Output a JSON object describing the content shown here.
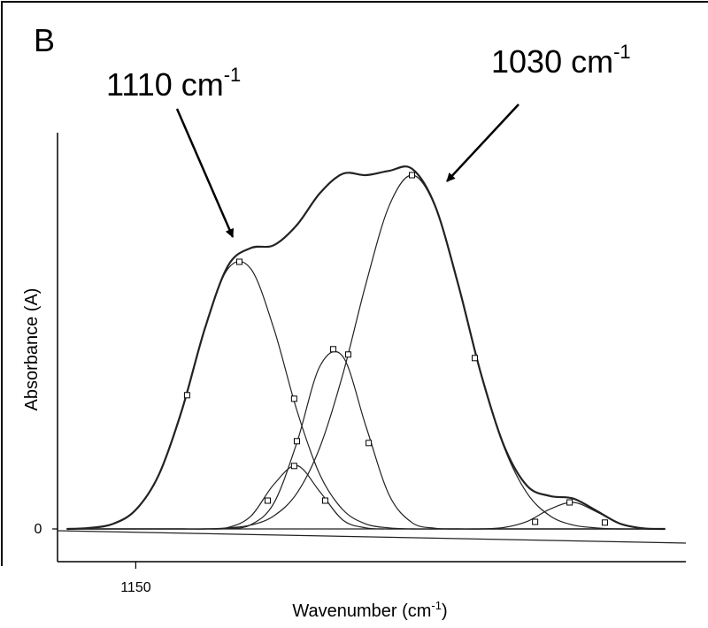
{
  "chart_data": {
    "type": "line",
    "panel_label": "B",
    "annotations": [
      {
        "text": "1110 cm",
        "sup": "-1"
      },
      {
        "text": "1030 cm",
        "sup": "-1"
      }
    ],
    "y_label": "Absorbance (A)",
    "x_label": [
      "Wavenumber (cm",
      "-1",
      ")"
    ],
    "xlim": [
      1184,
      911
    ],
    "ylim": [
      -0.0925,
      1.12
    ],
    "xticks": [
      1150
    ],
    "yticks": [
      0
    ],
    "x": [
      1180,
      1170,
      1160,
      1150,
      1140,
      1130,
      1120,
      1110,
      1100,
      1090,
      1080,
      1070,
      1060,
      1050,
      1040,
      1030,
      1020,
      1010,
      1000,
      990,
      980,
      970,
      960,
      950,
      940,
      930,
      920
    ],
    "series": [
      {
        "color": "#222222",
        "width": 2.2,
        "values": [
          0,
          0.003,
          0.014,
          0.054,
          0.153,
          0.335,
          0.566,
          0.743,
          0.794,
          0.802,
          0.859,
          0.949,
          1.004,
          1.0,
          1.012,
          1.018,
          0.914,
          0.693,
          0.438,
          0.235,
          0.122,
          0.093,
          0.086,
          0.052,
          0.016,
          0.002,
          0
        ]
      },
      {
        "color": "#222222",
        "width": 1.2,
        "values": [
          0,
          0.003,
          0.014,
          0.054,
          0.153,
          0.335,
          0.566,
          0.735,
          0.735,
          0.566,
          0.335,
          0.153,
          0.054,
          0.014,
          0.003,
          0,
          0,
          0,
          0,
          0,
          0,
          0,
          0,
          0,
          0,
          0,
          0
        ]
      },
      {
        "color": "#222222",
        "width": 1.2,
        "values": [
          0,
          0,
          0,
          0,
          0,
          0,
          0,
          0.004,
          0.036,
          0.126,
          0.179,
          0.105,
          0.025,
          0.003,
          0,
          0,
          0,
          0,
          0,
          0,
          0,
          0,
          0,
          0,
          0,
          0,
          0
        ]
      },
      {
        "color": "#222222",
        "width": 1.2,
        "values": [
          0,
          0,
          0,
          0,
          0,
          0,
          0,
          0.001,
          0.012,
          0.073,
          0.244,
          0.46,
          0.487,
          0.29,
          0.097,
          0.018,
          0.002,
          0,
          0,
          0,
          0,
          0,
          0,
          0,
          0,
          0,
          0
        ]
      },
      {
        "color": "#222222",
        "width": 1.2,
        "values": [
          0,
          0,
          0,
          0,
          0,
          0,
          0,
          0.003,
          0.011,
          0.037,
          0.101,
          0.231,
          0.438,
          0.693,
          0.912,
          1.0,
          0.912,
          0.693,
          0.438,
          0.231,
          0.101,
          0.037,
          0.011,
          0.003,
          0,
          0,
          0
        ]
      },
      {
        "color": "#222222",
        "width": 1.2,
        "values": [
          0,
          0,
          0,
          0,
          0,
          0,
          0,
          0,
          0,
          0,
          0,
          0,
          0,
          0,
          0,
          0,
          0,
          0,
          0,
          0.004,
          0.021,
          0.056,
          0.075,
          0.049,
          0.016,
          0.002,
          0
        ]
      }
    ],
    "baseline": {
      "x": [
        1184,
        911
      ],
      "values": [
        -0.005,
        -0.04
      ]
    },
    "points": {
      "x": [
        1127.7,
        1105,
        1081.2,
        1080,
        1092.7,
        1081.2,
        1067.7,
        1064.2,
        1057.7,
        1048.8,
        1030,
        1002.7,
        976.5,
        961.5,
        946.2
      ],
      "values": [
        0.378,
        0.755,
        0.368,
        0.248,
        0.08,
        0.178,
        0.08,
        0.508,
        0.493,
        0.243,
        1.0,
        0.483,
        0.02,
        0.075,
        0.018
      ]
    }
  }
}
